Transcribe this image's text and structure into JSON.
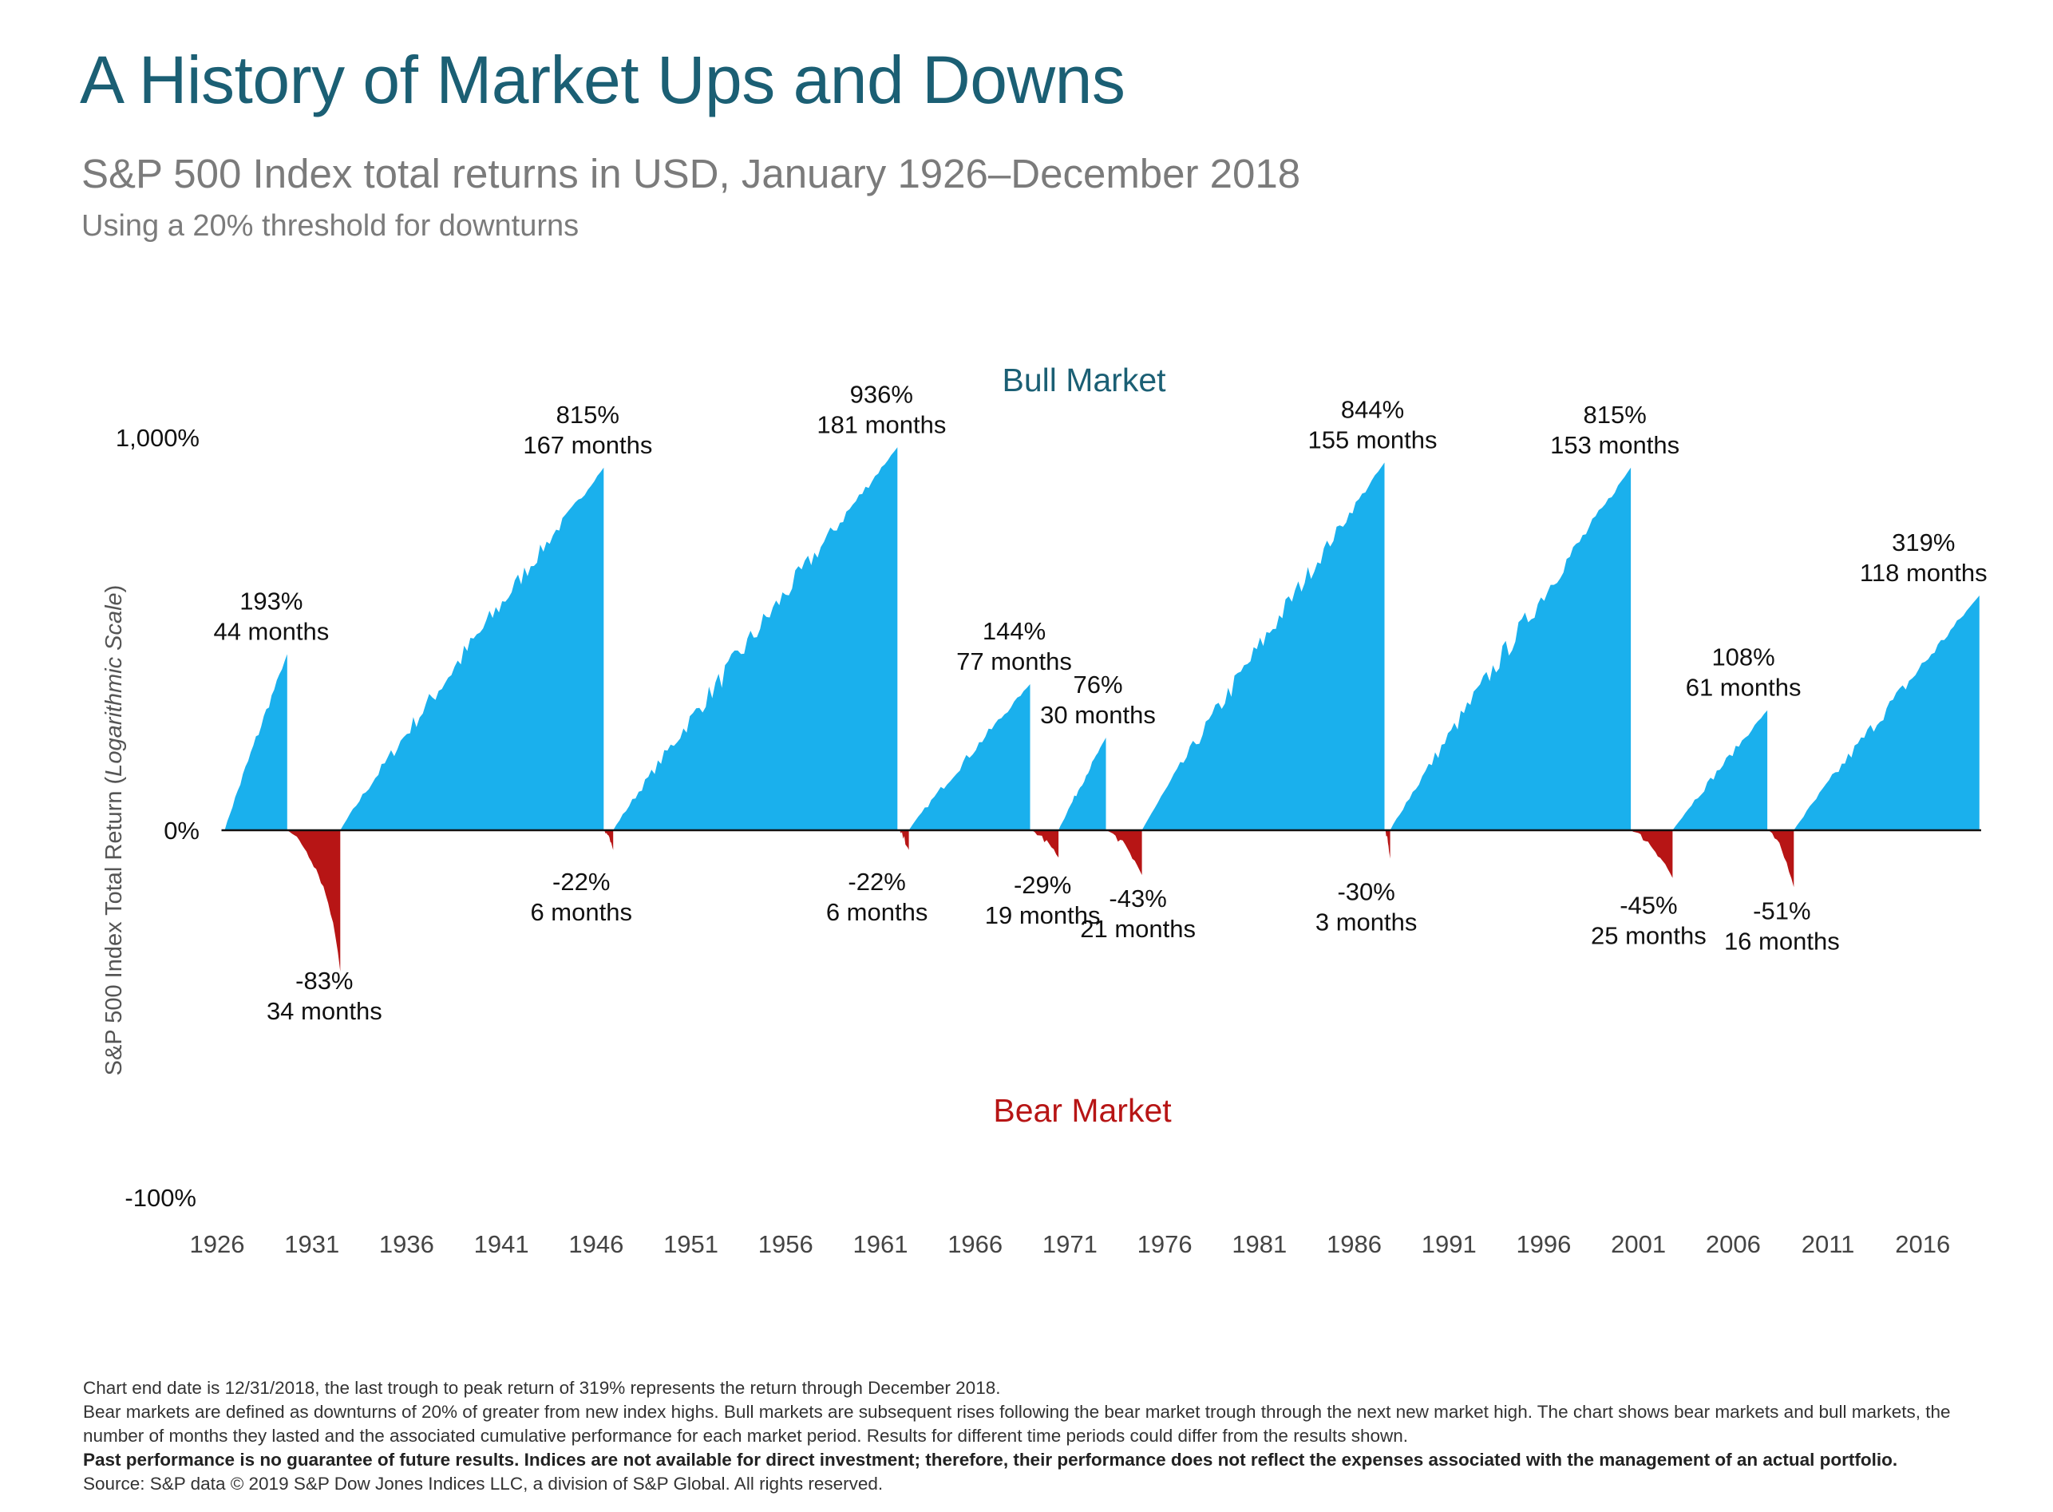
{
  "header": {
    "title": "A History of Market Ups and Downs",
    "subtitle": "S&P 500 Index total returns in USD, January 1926–December 2018",
    "subsubtitle": "Using a 20% threshold for downturns"
  },
  "chart_data": {
    "type": "area",
    "ylabel_main": "S&P 500 Index Total Return (",
    "ylabel_italic": "Logarithmic Scale",
    "ylabel_close": ")",
    "y_scale": "logarithmic",
    "y_ticks": [
      "1,000%",
      "0%",
      "-100%"
    ],
    "x_ticks": [
      "1926",
      "1931",
      "1936",
      "1941",
      "1946",
      "1951",
      "1956",
      "1961",
      "1966",
      "1971",
      "1976",
      "1981",
      "1986",
      "1991",
      "1996",
      "2001",
      "2006",
      "2011",
      "2016"
    ],
    "xlim": [
      1926,
      2019
    ],
    "bull_label": "Bull Market",
    "bear_label": "Bear Market",
    "colors": {
      "bull": "#1ab0ed",
      "bear": "#b71515",
      "bull_label": "#1b5f74",
      "bear_label": "#b71515"
    },
    "bull_markets": [
      {
        "start": 1926.4,
        "end": 1929.7,
        "return_pct": 193,
        "return_label": "193%",
        "months_label": "44 months"
      },
      {
        "start": 1932.5,
        "end": 1946.4,
        "return_pct": 815,
        "return_label": "815%",
        "months_label": "167 months"
      },
      {
        "start": 1946.9,
        "end": 1961.9,
        "return_pct": 936,
        "return_label": "936%",
        "months_label": "181 months"
      },
      {
        "start": 1962.5,
        "end": 1968.9,
        "return_pct": 144,
        "return_label": "144%",
        "months_label": "77 months"
      },
      {
        "start": 1970.4,
        "end": 1972.9,
        "return_pct": 76,
        "return_label": "76%",
        "months_label": "30 months"
      },
      {
        "start": 1974.8,
        "end": 1987.6,
        "return_pct": 844,
        "return_label": "844%",
        "months_label": "155 months"
      },
      {
        "start": 1987.9,
        "end": 2000.6,
        "return_pct": 815,
        "return_label": "815%",
        "months_label": "153 months"
      },
      {
        "start": 2002.8,
        "end": 2007.8,
        "return_pct": 108,
        "return_label": "108%",
        "months_label": "61 months"
      },
      {
        "start": 2009.2,
        "end": 2018.99,
        "return_pct": 319,
        "return_label": "319%",
        "months_label": "118 months"
      }
    ],
    "bear_markets": [
      {
        "start": 1929.7,
        "end": 1932.5,
        "return_pct": -83,
        "return_label": "-83%",
        "months_label": "34 months"
      },
      {
        "start": 1946.4,
        "end": 1946.9,
        "return_pct": -22,
        "return_label": "-22%",
        "months_label": "6 months"
      },
      {
        "start": 1961.9,
        "end": 1962.5,
        "return_pct": -22,
        "return_label": "-22%",
        "months_label": "6 months"
      },
      {
        "start": 1968.9,
        "end": 1970.4,
        "return_pct": -29,
        "return_label": "-29%",
        "months_label": "19 months"
      },
      {
        "start": 1972.9,
        "end": 1974.8,
        "return_pct": -43,
        "return_label": "-43%",
        "months_label": "21 months"
      },
      {
        "start": 1987.6,
        "end": 1987.9,
        "return_pct": -30,
        "return_label": "-30%",
        "months_label": "3 months"
      },
      {
        "start": 2000.6,
        "end": 2002.8,
        "return_pct": -45,
        "return_label": "-45%",
        "months_label": "25 months"
      },
      {
        "start": 2007.8,
        "end": 2009.2,
        "return_pct": -51,
        "return_label": "-51%",
        "months_label": "16 months"
      }
    ]
  },
  "footnotes": {
    "line1": "Chart end date is 12/31/2018, the last trough to peak return of 319% represents the return through December 2018.",
    "line2": "Bear markets are defined as downturns of 20% of greater from new index highs. Bull markets are subsequent rises following the bear market trough through the next new market high. The chart shows bear markets and bull markets, the number of months they lasted and the associated cumulative performance for each market period. Results for different time periods could differ from the results shown.",
    "line3": "Past performance is no guarantee of future results. Indices are not available for direct investment; therefore, their performance does not reflect the expenses associated with the management of an actual portfolio.",
    "line4": "Source: S&P data © 2019 S&P Dow Jones Indices LLC, a division of S&P Global. All rights reserved."
  }
}
